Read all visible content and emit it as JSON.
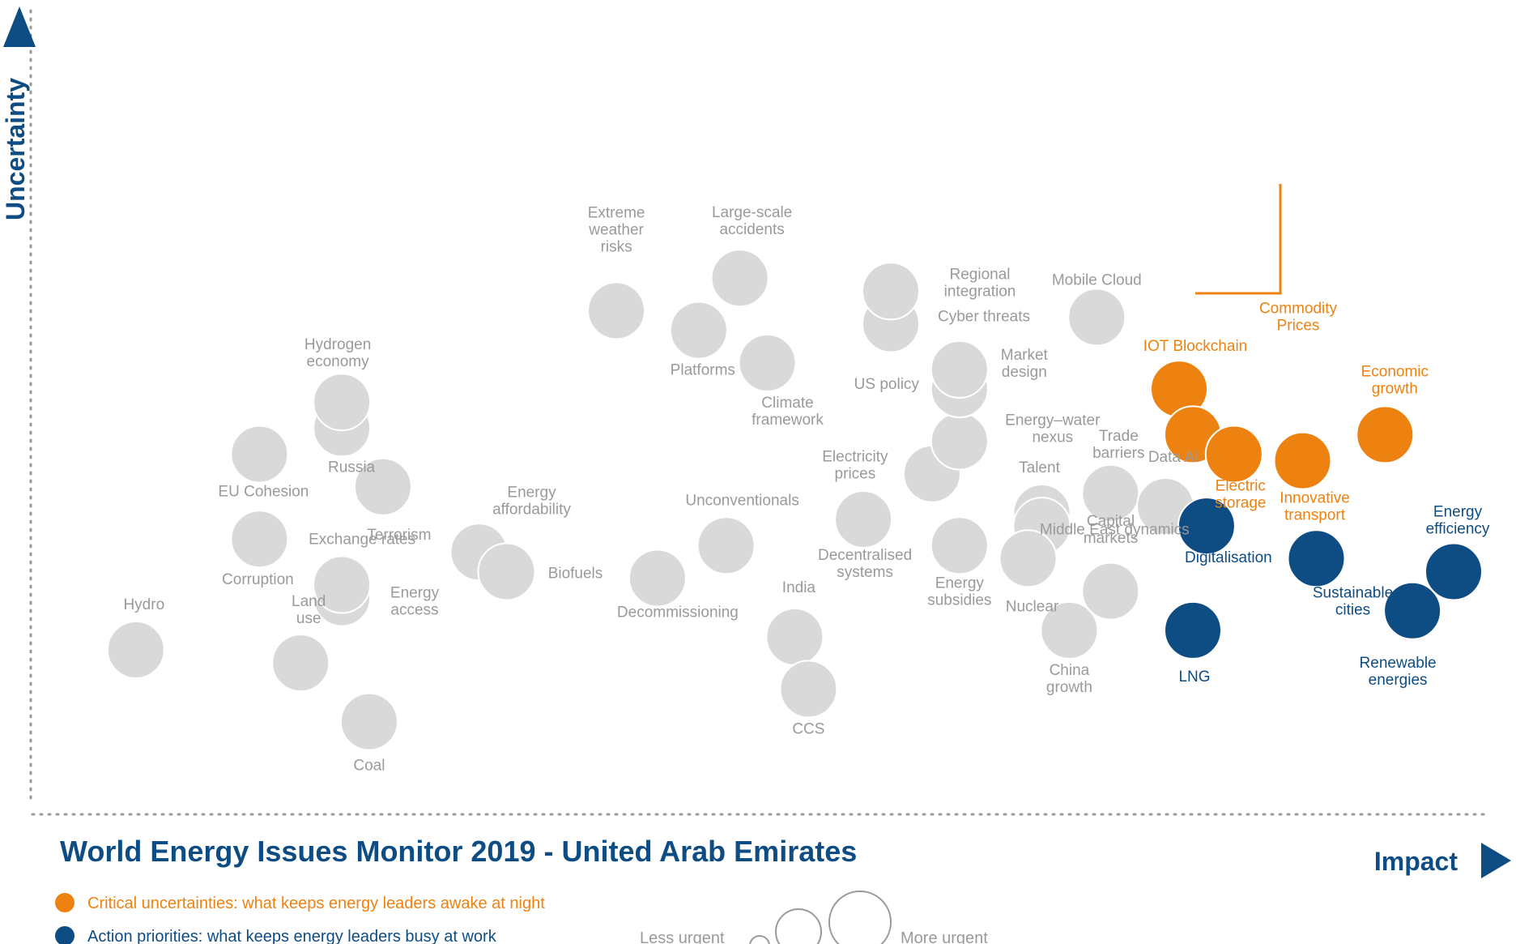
{
  "chart_data": {
    "type": "scatter",
    "title": "World Energy Issues Monitor 2019 - United Arab Emirates",
    "xlabel": "Impact",
    "ylabel": "Uncertainty",
    "colors": {
      "grey": "#d9d9d9",
      "orange": "#ee8210",
      "blue": "#0e4c84",
      "grey_text": "#9a9a9a"
    },
    "legend": {
      "critical": "Critical uncertainties: what keeps energy leaders awake at night",
      "action": "Action priorities: what keeps energy leaders busy at work",
      "less_urgent": "Less urgent",
      "more_urgent": "More urgent"
    },
    "series": [
      {
        "category": "grey",
        "points": [
          {
            "name": "Hydro",
            "x": 0.04,
            "y": 0.19
          },
          {
            "name": "Coal",
            "x": 0.21,
            "y": 0.08
          },
          {
            "name": "Land use",
            "x": 0.16,
            "y": 0.17
          },
          {
            "name": "Energy access",
            "x": 0.19,
            "y": 0.27
          },
          {
            "name": "Exchange rates",
            "x": 0.19,
            "y": 0.29
          },
          {
            "name": "Corruption",
            "x": 0.13,
            "y": 0.36
          },
          {
            "name": "EU Cohesion",
            "x": 0.13,
            "y": 0.49
          },
          {
            "name": "Russia",
            "x": 0.19,
            "y": 0.53
          },
          {
            "name": "Hydrogen economy",
            "x": 0.19,
            "y": 0.57
          },
          {
            "name": "Terrorism",
            "x": 0.22,
            "y": 0.44
          },
          {
            "name": "Energy affordability",
            "x": 0.29,
            "y": 0.34
          },
          {
            "name": "Biofuels",
            "x": 0.31,
            "y": 0.31
          },
          {
            "name": "Decommissioning",
            "x": 0.42,
            "y": 0.3
          },
          {
            "name": "Unconventionals",
            "x": 0.47,
            "y": 0.35
          },
          {
            "name": "India",
            "x": 0.52,
            "y": 0.21
          },
          {
            "name": "CCS",
            "x": 0.53,
            "y": 0.13
          },
          {
            "name": "Decentralised systems",
            "x": 0.57,
            "y": 0.39
          },
          {
            "name": "Electricity prices",
            "x": 0.62,
            "y": 0.46
          },
          {
            "name": "Energy subsidies",
            "x": 0.64,
            "y": 0.35
          },
          {
            "name": "Energy–water nexus",
            "x": 0.64,
            "y": 0.51
          },
          {
            "name": "US policy",
            "x": 0.64,
            "y": 0.59
          },
          {
            "name": "Market design",
            "x": 0.64,
            "y": 0.62
          },
          {
            "name": "Cyber threats",
            "x": 0.59,
            "y": 0.69
          },
          {
            "name": "Regional integration",
            "x": 0.59,
            "y": 0.74
          },
          {
            "name": "Platforms",
            "x": 0.45,
            "y": 0.68
          },
          {
            "name": "Extreme weather risks",
            "x": 0.39,
            "y": 0.71
          },
          {
            "name": "Large-scale accidents",
            "x": 0.48,
            "y": 0.76
          },
          {
            "name": "Climate framework",
            "x": 0.5,
            "y": 0.63
          },
          {
            "name": "Mobile Cloud",
            "x": 0.74,
            "y": 0.7
          },
          {
            "name": "Talent",
            "x": 0.7,
            "y": 0.4
          },
          {
            "name": "Capital markets",
            "x": 0.7,
            "y": 0.38
          },
          {
            "name": "Nuclear",
            "x": 0.69,
            "y": 0.33
          },
          {
            "name": "Trade barriers",
            "x": 0.75,
            "y": 0.43
          },
          {
            "name": "Data AI",
            "x": 0.79,
            "y": 0.41
          },
          {
            "name": "Middle East dynamics",
            "x": 0.75,
            "y": 0.28
          },
          {
            "name": "China growth",
            "x": 0.72,
            "y": 0.22
          }
        ]
      },
      {
        "category": "orange",
        "points": [
          {
            "name": "IOT Blockchain",
            "x": 0.8,
            "y": 0.59
          },
          {
            "name": "Commodity Prices",
            "x": 0.81,
            "y": 0.52
          },
          {
            "name": "Electric storage",
            "x": 0.84,
            "y": 0.49
          },
          {
            "name": "Innovative transport",
            "x": 0.89,
            "y": 0.48
          },
          {
            "name": "Economic growth",
            "x": 0.95,
            "y": 0.52
          }
        ]
      },
      {
        "category": "blue",
        "points": [
          {
            "name": "Digitalisation",
            "x": 0.82,
            "y": 0.38
          },
          {
            "name": "Sustainable cities",
            "x": 0.9,
            "y": 0.33
          },
          {
            "name": "Energy efficiency",
            "x": 1.0,
            "y": 0.31
          },
          {
            "name": "Renewable energies",
            "x": 0.97,
            "y": 0.25
          },
          {
            "name": "LNG",
            "x": 0.81,
            "y": 0.22
          }
        ]
      }
    ]
  }
}
